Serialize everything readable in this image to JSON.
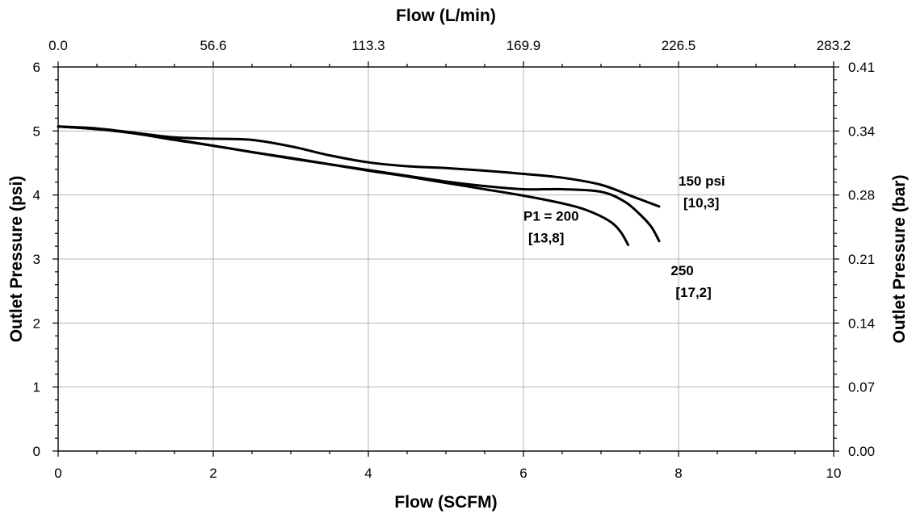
{
  "chart_data": {
    "type": "line",
    "title": "",
    "xlabel": "Flow (SCFM)",
    "ylabel": "Outlet Pressure (psi)",
    "x2label": "Flow (L/min)",
    "y2label": "Outlet Pressure (bar)",
    "xlim": [
      0,
      10
    ],
    "ylim": [
      0,
      6
    ],
    "grid": true,
    "x_ticks": [
      "0",
      "2",
      "4",
      "6",
      "8",
      "10"
    ],
    "y_ticks": [
      "0",
      "1",
      "2",
      "3",
      "4",
      "5",
      "6"
    ],
    "x2_ticks": [
      "0.0",
      "56.6",
      "113.3",
      "169.9",
      "226.5",
      "283.2"
    ],
    "y2_ticks": [
      "0.00",
      "0.07",
      "0.14",
      "0.21",
      "0.28",
      "0.34",
      "0.41"
    ],
    "series": [
      {
        "name": "P1 = 200 [13,8]",
        "x": [
          0,
          0.5,
          1,
          1.5,
          2,
          2.5,
          3,
          3.5,
          4,
          4.5,
          5,
          5.5,
          6,
          6.5,
          6.8,
          7.1,
          7.25,
          7.35
        ],
        "y": [
          5.07,
          5.03,
          4.96,
          4.86,
          4.77,
          4.67,
          4.57,
          4.48,
          4.38,
          4.29,
          4.19,
          4.09,
          3.99,
          3.87,
          3.77,
          3.6,
          3.43,
          3.22
        ]
      },
      {
        "name": "250 [17,2]",
        "x": [
          0,
          0.5,
          1,
          1.5,
          2,
          2.5,
          3,
          3.5,
          4,
          4.5,
          5,
          5.5,
          6,
          6.5,
          7,
          7.3,
          7.5,
          7.65,
          7.75
        ],
        "y": [
          5.07,
          5.03,
          4.96,
          4.87,
          4.77,
          4.67,
          4.58,
          4.48,
          4.39,
          4.3,
          4.21,
          4.14,
          4.09,
          4.09,
          4.05,
          3.9,
          3.7,
          3.5,
          3.28
        ]
      },
      {
        "name": "150 psi [10,3]",
        "x": [
          0,
          0.5,
          1,
          1.5,
          2,
          2.5,
          3,
          3.5,
          4,
          4.5,
          5,
          5.5,
          6,
          6.5,
          7,
          7.4,
          7.75
        ],
        "y": [
          5.07,
          5.04,
          4.97,
          4.9,
          4.88,
          4.86,
          4.76,
          4.62,
          4.51,
          4.45,
          4.42,
          4.38,
          4.33,
          4.27,
          4.16,
          3.98,
          3.82
        ]
      }
    ],
    "annotations": [
      {
        "lines": [
          "P1 = 200",
          "[13,8]"
        ],
        "x": 6.0,
        "y": 3.6
      },
      {
        "lines": [
          "250",
          "[17,2]"
        ],
        "x": 7.9,
        "y": 2.75
      },
      {
        "lines": [
          "150 psi",
          "[10,3]"
        ],
        "x": 8.0,
        "y": 4.15
      }
    ]
  }
}
